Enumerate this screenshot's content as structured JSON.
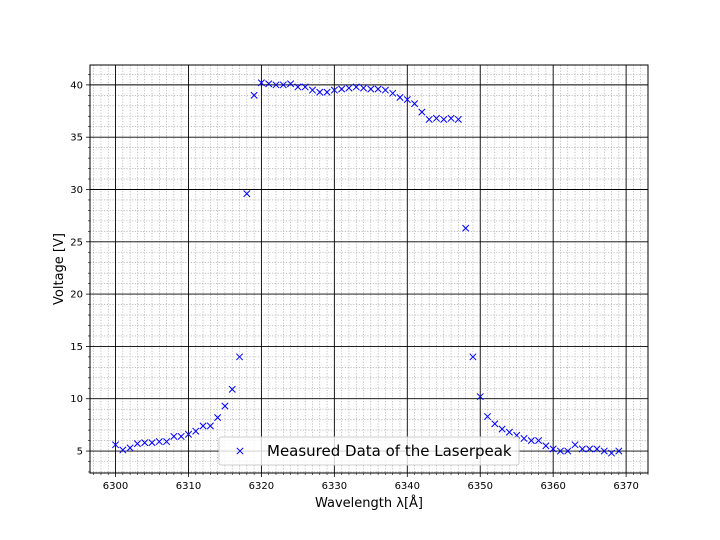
{
  "chart_data": {
    "type": "scatter",
    "xlabel": "Wavelength λ[Å]",
    "ylabel": "Voltage [V]",
    "xlim": [
      6296.5,
      6373
    ],
    "ylim": [
      2.9,
      41.9
    ],
    "xticks": [
      6300,
      6310,
      6320,
      6330,
      6340,
      6350,
      6360,
      6370
    ],
    "yticks": [
      5,
      10,
      15,
      20,
      25,
      30,
      35,
      40
    ],
    "grid": {
      "major": true,
      "minor": true
    },
    "legend_position": "lower-center",
    "marker": "x",
    "color": "#0000ff",
    "series": [
      {
        "name": "Measured Data of the Laserpeak",
        "x": [
          6300,
          6301,
          6302,
          6303,
          6304,
          6305,
          6306,
          6307,
          6308,
          6309,
          6310,
          6311,
          6312,
          6313,
          6314,
          6315,
          6316,
          6317,
          6318,
          6319,
          6320,
          6321,
          6322,
          6323,
          6324,
          6325,
          6326,
          6327,
          6328,
          6329,
          6330,
          6331,
          6332,
          6333,
          6334,
          6335,
          6336,
          6337,
          6338,
          6339,
          6340,
          6341,
          6342,
          6343,
          6344,
          6345,
          6346,
          6347,
          6348,
          6349,
          6350,
          6351,
          6352,
          6353,
          6354,
          6355,
          6356,
          6357,
          6358,
          6359,
          6360,
          6361,
          6362,
          6363,
          6364,
          6365,
          6366,
          6367,
          6368,
          6369
        ],
        "y": [
          5.6,
          5.1,
          5.3,
          5.7,
          5.8,
          5.8,
          5.9,
          5.9,
          6.4,
          6.4,
          6.6,
          6.9,
          7.4,
          7.4,
          8.2,
          9.3,
          10.9,
          14.0,
          29.6,
          39.0,
          40.2,
          40.1,
          40.0,
          40.0,
          40.1,
          39.8,
          39.8,
          39.5,
          39.3,
          39.3,
          39.5,
          39.6,
          39.7,
          39.8,
          39.7,
          39.6,
          39.6,
          39.5,
          39.2,
          38.8,
          38.6,
          38.2,
          37.4,
          36.7,
          36.8,
          36.7,
          36.8,
          36.7,
          26.3,
          14.0,
          10.2,
          8.3,
          7.6,
          7.1,
          6.8,
          6.5,
          6.2,
          6.0,
          6.0,
          5.5,
          5.2,
          5.0,
          5.0,
          5.6,
          5.2,
          5.2,
          5.2,
          5.0,
          4.8,
          5.0
        ]
      }
    ]
  }
}
